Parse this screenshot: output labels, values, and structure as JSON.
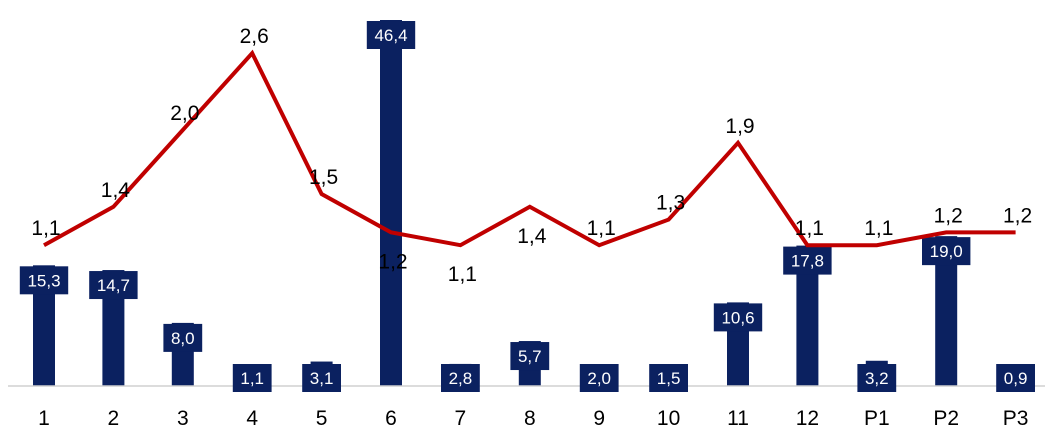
{
  "chart_data": {
    "type": "bar",
    "categories": [
      "1",
      "2",
      "3",
      "4",
      "5",
      "6",
      "7",
      "8",
      "9",
      "10",
      "11",
      "12",
      "P1",
      "P2",
      "P3"
    ],
    "series": [
      {
        "type": "bar",
        "values": [
          15.3,
          14.7,
          8.0,
          1.1,
          3.1,
          46.4,
          2.8,
          5.7,
          2.0,
          1.5,
          10.6,
          17.8,
          3.2,
          19.0,
          0.9
        ],
        "labels": [
          "15,3",
          "14,7",
          "8,0",
          "1,1",
          "3,1",
          "46,4",
          "2,8",
          "5,7",
          "2,0",
          "1,5",
          "10,6",
          "17,8",
          "3,2",
          "19,0",
          "0,9"
        ],
        "color": "#0b2160"
      },
      {
        "type": "line",
        "values": [
          1.1,
          1.4,
          2.0,
          2.6,
          1.5,
          1.2,
          1.1,
          1.4,
          1.1,
          1.3,
          1.9,
          1.1,
          1.1,
          1.2,
          1.2
        ],
        "labels": [
          "1,1",
          "1,4",
          "2,0",
          "2,6",
          "1,5",
          "1,2",
          "1,1",
          "1,4",
          "1,1",
          "1,3",
          "1,9",
          "1,1",
          "1,1",
          "1,2",
          "1,2"
        ],
        "color": "#c00000"
      }
    ],
    "title": "",
    "xlabel": "",
    "ylabel": "",
    "ylim": [
      0,
      46.4
    ],
    "y2lim": [
      0,
      3.0
    ],
    "grid": false,
    "legend": "none"
  }
}
